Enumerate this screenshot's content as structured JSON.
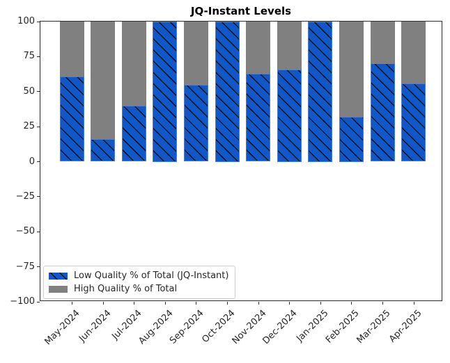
{
  "title": "JQ-Instant Levels",
  "chart_data": {
    "type": "bar",
    "stacked": true,
    "title": "JQ-Instant Levels",
    "categories": [
      "May-2024",
      "Jun-2024",
      "Jul-2024",
      "Aug-2024",
      "Sep-2024",
      "Oct-2024",
      "Nov-2024",
      "Dec-2024",
      "Jan-2025",
      "Feb-2025",
      "Mar-2025",
      "Apr-2025"
    ],
    "series": [
      {
        "name": "Low Quality % of Total (JQ-Instant)",
        "color": "#1057c8",
        "edge_color": "#4d7fd0",
        "hatch": "diagonal-down",
        "values": [
          61,
          16,
          40,
          100,
          55,
          100,
          63,
          66,
          100,
          32,
          70,
          56
        ]
      },
      {
        "name": "High Quality % of Total",
        "color": "#808080",
        "edge_color": "#808080",
        "hatch": "none",
        "values": [
          39,
          84,
          60,
          0,
          45,
          0,
          37,
          34,
          0,
          68,
          30,
          44
        ]
      }
    ],
    "xlabel": "",
    "ylabel": "",
    "ylim": [
      -100,
      100
    ],
    "yticks": [
      100,
      75,
      50,
      25,
      0,
      -25,
      -50,
      -75,
      -100
    ],
    "ytick_labels": [
      "100",
      "75",
      "50",
      "25",
      "0",
      "−25",
      "−50",
      "−75",
      "−100"
    ],
    "grid": false,
    "legend_position": "lower left",
    "hatch_color": "#0a0a14"
  }
}
